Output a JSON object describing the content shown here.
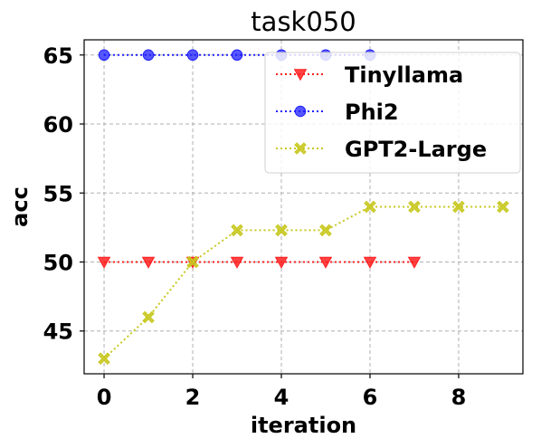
{
  "chart_data": {
    "type": "line",
    "title": "task050",
    "xlabel": "iteration",
    "ylabel": "acc",
    "xlim": [
      -0.45,
      9.45
    ],
    "ylim": [
      41.9,
      66.1
    ],
    "xticks": [
      0,
      2,
      4,
      6,
      8
    ],
    "yticks": [
      45,
      50,
      55,
      60,
      65
    ],
    "grid": true,
    "legend_position": "top-right",
    "series": [
      {
        "name": "Tinyllama",
        "color": "#ff2020",
        "marker": "triangle-down",
        "linestyle": "dotted",
        "x": [
          0,
          1,
          2,
          3,
          4,
          5,
          6,
          7
        ],
        "y": [
          50,
          50,
          50,
          50,
          50,
          50,
          50,
          50
        ]
      },
      {
        "name": "Phi2",
        "color": "#1f1fff",
        "marker": "circle",
        "linestyle": "dotted",
        "x": [
          0,
          1,
          2,
          3,
          4,
          5,
          6
        ],
        "y": [
          65,
          65,
          65,
          65,
          65,
          65,
          65
        ]
      },
      {
        "name": "GPT2-Large",
        "color": "#c8c820",
        "marker": "x-filled",
        "linestyle": "dotted",
        "x": [
          0,
          1,
          2,
          3,
          4,
          5,
          6,
          7,
          8,
          9
        ],
        "y": [
          43,
          46,
          50,
          52.3,
          52.3,
          52.3,
          54,
          54,
          54,
          54
        ]
      }
    ]
  }
}
